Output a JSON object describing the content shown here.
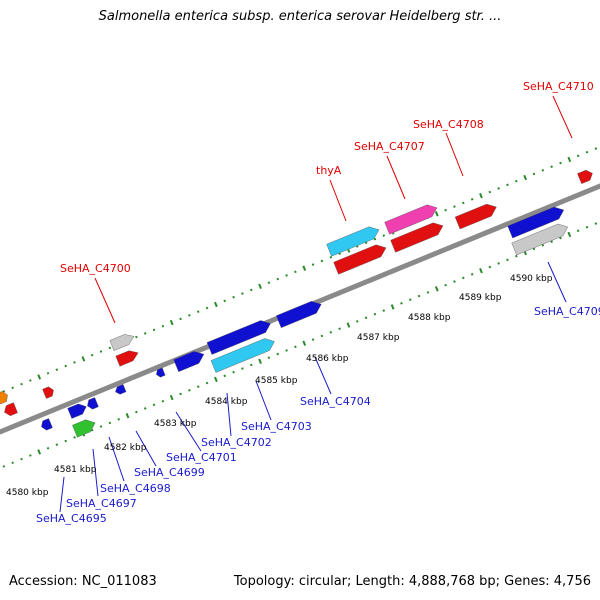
{
  "title": "Salmonella enterica subsp. enterica serovar Heidelberg str. ...",
  "footer": {
    "accession": "Accession: NC_011083",
    "summary": "Topology: circular; Length: 4,888,768 bp; Genes: 4,756"
  },
  "colors": {
    "backbone": "#8a8a8a",
    "tick": "#2a8a2a",
    "label_top": "#e00000",
    "label_bottom": "#1a1acc",
    "blue": "#1010d0",
    "cyan": "#30c8f0",
    "red": "#e01010",
    "pink": "#f040b0",
    "gray": "#c8c8c8",
    "green": "#30c030",
    "orange": "#f08000"
  },
  "kbp_labels": [
    "4580 kbp",
    "4581 kbp",
    "4582 kbp",
    "4583 kbp",
    "4584 kbp",
    "4585 kbp",
    "4586 kbp",
    "4587 kbp",
    "4588 kbp",
    "4589 kbp",
    "4590 kbp"
  ],
  "top_labels": [
    "SeHA_C4700",
    "thyA",
    "SeHA_C4707",
    "SeHA_C4708",
    "SeHA_C4710"
  ],
  "bottom_labels": [
    "SeHA_C4695",
    "SeHA_C4697",
    "SeHA_C4698",
    "SeHA_C4699",
    "SeHA_C4701",
    "SeHA_C4702",
    "SeHA_C4703",
    "SeHA_C4704",
    "SeHA_C4709"
  ]
}
